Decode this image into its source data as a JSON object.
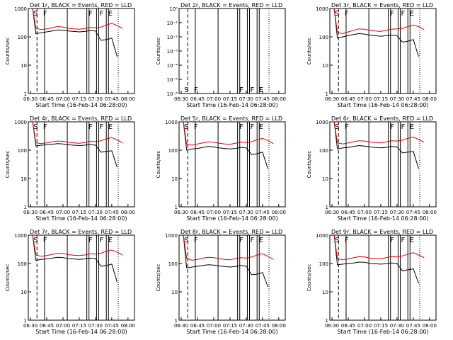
{
  "chart_data": [
    {
      "title": "Det 1r, BLACK = Events, RED = LLD",
      "x_ticks": [
        "06:30",
        "06:45",
        "07:00",
        "07:15",
        "07:30",
        "07:45",
        "08:00"
      ],
      "y_ticks": [
        "1",
        "10",
        "100",
        "1000"
      ],
      "ylabel": "Counts/sec",
      "xlabel": "Start Time (16-Feb-14 06:28:00)",
      "flags": [
        "S",
        "F",
        "F",
        "F",
        "E"
      ],
      "type": "line",
      "yscale": "log",
      "ylim": [
        1,
        1000
      ],
      "series": [
        {
          "name": "Events",
          "color": "#000000",
          "x": [
            "06:32",
            "06:35",
            "06:40",
            "06:45",
            "06:50",
            "06:55",
            "07:00",
            "07:05",
            "07:10",
            "07:15",
            "07:20",
            "07:25",
            "07:30",
            "07:35",
            "07:40",
            "07:45",
            "07:50",
            "07:55"
          ],
          "y": [
            1000,
            130,
            140,
            150,
            160,
            175,
            170,
            160,
            155,
            150,
            155,
            165,
            160,
            75,
            80,
            90,
            20,
            null
          ]
        },
        {
          "name": "LLD",
          "color": "#e00000",
          "x": [
            "06:32",
            "06:35",
            "06:40",
            "06:45",
            "06:50",
            "06:55",
            "07:00",
            "07:05",
            "07:10",
            "07:15",
            "07:20",
            "07:25",
            "07:30",
            "07:35",
            "07:40",
            "07:45",
            "07:50",
            "07:55"
          ],
          "y": [
            1000,
            200,
            180,
            190,
            210,
            230,
            220,
            200,
            190,
            185,
            195,
            215,
            210,
            220,
            260,
            300,
            250,
            200
          ]
        }
      ]
    },
    {
      "title": "Det 2r, BLACK = Events, RED = LLD",
      "x_ticks": [
        "06:30",
        "06:45",
        "07:00",
        "07:15",
        "07:30",
        "07:45",
        "08:00"
      ],
      "y_ticks": [
        "10⁻⁶",
        "10⁻⁵",
        "10⁻⁴",
        "10⁻³",
        "10⁻²",
        "10⁻¹",
        "10⁰"
      ],
      "ylabel": "Counts/sec",
      "xlabel": "Start Time (16-Feb-14 06:28:00)",
      "flags": [
        "S",
        "F",
        "F",
        "F",
        "E"
      ],
      "type": "line",
      "yscale": "log",
      "ylim": [
        1e-06,
        1
      ],
      "series": []
    },
    {
      "title": "Det 3r, BLACK = Events, RED = LLD",
      "x_ticks": [
        "06:30",
        "06:45",
        "07:00",
        "07:15",
        "07:30",
        "07:45",
        "08:00"
      ],
      "y_ticks": [
        "1",
        "10",
        "100",
        "1000"
      ],
      "ylabel": "Counts/sec",
      "xlabel": "Start Time (16-Feb-14 06:28:00)",
      "flags": [
        "S",
        "F",
        "F",
        "F",
        "E"
      ],
      "type": "line",
      "yscale": "log",
      "ylim": [
        1,
        1000
      ],
      "series": [
        {
          "name": "Events",
          "color": "#000000",
          "x": [
            "06:32",
            "06:35",
            "06:40",
            "06:45",
            "06:50",
            "06:55",
            "07:00",
            "07:05",
            "07:10",
            "07:15",
            "07:20",
            "07:25",
            "07:30",
            "07:35",
            "07:40",
            "07:45",
            "07:50",
            "07:55"
          ],
          "y": [
            1000,
            90,
            100,
            110,
            120,
            130,
            125,
            115,
            110,
            105,
            110,
            115,
            110,
            65,
            70,
            80,
            20,
            null
          ]
        },
        {
          "name": "LLD",
          "color": "#e00000",
          "x": [
            "06:32",
            "06:35",
            "06:40",
            "06:45",
            "06:50",
            "06:55",
            "07:00",
            "07:05",
            "07:10",
            "07:15",
            "07:20",
            "07:25",
            "07:30",
            "07:35",
            "07:40",
            "07:45",
            "07:50",
            "07:55"
          ],
          "y": [
            1000,
            140,
            130,
            150,
            170,
            190,
            185,
            170,
            160,
            155,
            170,
            185,
            190,
            200,
            230,
            260,
            230,
            180
          ]
        }
      ]
    },
    {
      "title": "Det 4r, BLACK = Events, RED = LLD",
      "x_ticks": [
        "06:30",
        "06:45",
        "07:00",
        "07:15",
        "07:30",
        "07:45",
        "08:00"
      ],
      "y_ticks": [
        "1",
        "10",
        "100",
        "1000"
      ],
      "ylabel": "Counts/sec",
      "xlabel": "Start Time (16-Feb-14 06:28:00)",
      "flags": [
        "S",
        "F",
        "F",
        "F",
        "E"
      ],
      "type": "line",
      "yscale": "log",
      "ylim": [
        1,
        1000
      ],
      "series": [
        {
          "name": "Events",
          "color": "#000000",
          "x": [
            "06:32",
            "06:35",
            "06:40",
            "06:45",
            "06:50",
            "06:55",
            "07:00",
            "07:05",
            "07:10",
            "07:15",
            "07:20",
            "07:25",
            "07:30",
            "07:35",
            "07:40",
            "07:45",
            "07:50",
            "07:55"
          ],
          "y": [
            1000,
            140,
            150,
            155,
            160,
            170,
            165,
            155,
            150,
            145,
            150,
            160,
            150,
            85,
            90,
            95,
            25,
            null
          ]
        },
        {
          "name": "LLD",
          "color": "#e00000",
          "x": [
            "06:32",
            "06:35",
            "06:40",
            "06:45",
            "06:50",
            "06:55",
            "07:00",
            "07:05",
            "07:10",
            "07:15",
            "07:20",
            "07:25",
            "07:30",
            "07:35",
            "07:40",
            "07:45",
            "07:50",
            "07:55"
          ],
          "y": [
            1000,
            180,
            170,
            180,
            195,
            210,
            205,
            190,
            180,
            175,
            185,
            205,
            200,
            215,
            250,
            280,
            230,
            180
          ]
        }
      ]
    },
    {
      "title": "Det 5r, BLACK = Events, RED = LLD",
      "x_ticks": [
        "06:30",
        "06:45",
        "07:00",
        "07:15",
        "07:30",
        "07:45",
        "08:00"
      ],
      "y_ticks": [
        "1",
        "10",
        "100",
        "1000"
      ],
      "ylabel": "Counts/sec",
      "xlabel": "Start Time (16-Feb-14 06:28:00)",
      "flags": [
        "S",
        "F",
        "F",
        "F",
        "E"
      ],
      "type": "line",
      "yscale": "log",
      "ylim": [
        1,
        1000
      ],
      "series": [
        {
          "name": "Events",
          "color": "#000000",
          "x": [
            "06:32",
            "06:35",
            "06:40",
            "06:45",
            "06:50",
            "06:55",
            "07:00",
            "07:05",
            "07:10",
            "07:15",
            "07:20",
            "07:25",
            "07:30",
            "07:35",
            "07:40",
            "07:45",
            "07:50",
            "07:55"
          ],
          "y": [
            1000,
            100,
            110,
            115,
            125,
            135,
            130,
            120,
            115,
            110,
            115,
            125,
            120,
            70,
            75,
            85,
            22,
            null
          ]
        },
        {
          "name": "LLD",
          "color": "#e00000",
          "x": [
            "06:32",
            "06:35",
            "06:40",
            "06:45",
            "06:50",
            "06:55",
            "07:00",
            "07:05",
            "07:10",
            "07:15",
            "07:20",
            "07:25",
            "07:30",
            "07:35",
            "07:40",
            "07:45",
            "07:50",
            "07:55"
          ],
          "y": [
            1000,
            160,
            150,
            165,
            180,
            195,
            190,
            175,
            165,
            160,
            175,
            190,
            185,
            200,
            235,
            260,
            220,
            170
          ]
        }
      ]
    },
    {
      "title": "Det 6r, BLACK = Events, RED = LLD",
      "x_ticks": [
        "06:30",
        "06:45",
        "07:00",
        "07:15",
        "07:30",
        "07:45",
        "08:00"
      ],
      "y_ticks": [
        "1",
        "10",
        "100",
        "1000"
      ],
      "ylabel": "Counts/sec",
      "xlabel": "Start Time (16-Feb-14 06:28:00)",
      "flags": [
        "S",
        "F",
        "F",
        "F",
        "E"
      ],
      "type": "line",
      "yscale": "log",
      "ylim": [
        1,
        1000
      ],
      "series": [
        {
          "name": "Events",
          "color": "#000000",
          "x": [
            "06:32",
            "06:35",
            "06:40",
            "06:45",
            "06:50",
            "06:55",
            "07:00",
            "07:05",
            "07:10",
            "07:15",
            "07:20",
            "07:25",
            "07:30",
            "07:35",
            "07:40",
            "07:45",
            "07:50",
            "07:55"
          ],
          "y": [
            1000,
            110,
            120,
            125,
            135,
            145,
            140,
            130,
            125,
            120,
            125,
            135,
            130,
            80,
            85,
            90,
            22,
            null
          ]
        },
        {
          "name": "LLD",
          "color": "#e00000",
          "x": [
            "06:32",
            "06:35",
            "06:40",
            "06:45",
            "06:50",
            "06:55",
            "07:00",
            "07:05",
            "07:10",
            "07:15",
            "07:20",
            "07:25",
            "07:30",
            "07:35",
            "07:40",
            "07:45",
            "07:50",
            "07:55"
          ],
          "y": [
            1000,
            180,
            165,
            180,
            200,
            215,
            210,
            195,
            185,
            180,
            195,
            215,
            210,
            225,
            260,
            290,
            240,
            190
          ]
        }
      ]
    },
    {
      "title": "Det 7r, BLACK = Events, RED = LLD",
      "x_ticks": [
        "06:30",
        "06:45",
        "07:00",
        "07:15",
        "07:30",
        "07:45",
        "08:00"
      ],
      "y_ticks": [
        "1",
        "10",
        "100",
        "1000"
      ],
      "ylabel": "Counts/sec",
      "xlabel": "Start Time (16-Feb-14 06:28:00)",
      "flags": [
        "S",
        "F",
        "F",
        "F",
        "E"
      ],
      "type": "line",
      "yscale": "log",
      "ylim": [
        1,
        1000
      ],
      "series": [
        {
          "name": "Events",
          "color": "#000000",
          "x": [
            "06:32",
            "06:35",
            "06:40",
            "06:45",
            "06:50",
            "06:55",
            "07:00",
            "07:05",
            "07:10",
            "07:15",
            "07:20",
            "07:25",
            "07:30",
            "07:35",
            "07:40",
            "07:45",
            "07:50",
            "07:55"
          ],
          "y": [
            1000,
            130,
            140,
            145,
            155,
            165,
            160,
            150,
            145,
            140,
            145,
            155,
            150,
            80,
            85,
            95,
            22,
            null
          ]
        },
        {
          "name": "LLD",
          "color": "#e00000",
          "x": [
            "06:32",
            "06:35",
            "06:40",
            "06:45",
            "06:50",
            "06:55",
            "07:00",
            "07:05",
            "07:10",
            "07:15",
            "07:20",
            "07:25",
            "07:30",
            "07:35",
            "07:40",
            "07:45",
            "07:50",
            "07:55"
          ],
          "y": [
            1000,
            200,
            180,
            190,
            210,
            230,
            225,
            205,
            195,
            190,
            200,
            220,
            215,
            230,
            270,
            300,
            250,
            200
          ]
        }
      ]
    },
    {
      "title": "Det 8r, BLACK = Events, RED = LLD",
      "x_ticks": [
        "06:30",
        "06:45",
        "07:00",
        "07:15",
        "07:30",
        "07:45",
        "08:00"
      ],
      "y_ticks": [
        "1",
        "10",
        "100",
        "1000"
      ],
      "ylabel": "Counts/sec",
      "xlabel": "Start Time (16-Feb-14 06:28:00)",
      "flags": [
        "S",
        "F",
        "F",
        "F",
        "E"
      ],
      "type": "line",
      "yscale": "log",
      "ylim": [
        1,
        1000
      ],
      "series": [
        {
          "name": "Events",
          "color": "#000000",
          "x": [
            "06:32",
            "06:35",
            "06:40",
            "06:45",
            "06:50",
            "06:55",
            "07:00",
            "07:05",
            "07:10",
            "07:15",
            "07:20",
            "07:25",
            "07:30",
            "07:35",
            "07:40",
            "07:45",
            "07:50",
            "07:55"
          ],
          "y": [
            1000,
            70,
            75,
            80,
            85,
            90,
            88,
            82,
            78,
            75,
            78,
            85,
            80,
            40,
            42,
            48,
            15,
            null
          ]
        },
        {
          "name": "LLD",
          "color": "#e00000",
          "x": [
            "06:32",
            "06:35",
            "06:40",
            "06:45",
            "06:50",
            "06:55",
            "07:00",
            "07:05",
            "07:10",
            "07:15",
            "07:20",
            "07:25",
            "07:30",
            "07:35",
            "07:40",
            "07:45",
            "07:50",
            "07:55"
          ],
          "y": [
            1000,
            150,
            130,
            140,
            155,
            165,
            160,
            150,
            140,
            135,
            150,
            160,
            155,
            170,
            200,
            220,
            180,
            140
          ]
        }
      ]
    },
    {
      "title": "Det 9r, BLACK = Events, RED = LLD",
      "x_ticks": [
        "06:30",
        "06:45",
        "07:00",
        "07:15",
        "07:30",
        "07:45",
        "08:00"
      ],
      "y_ticks": [
        "1",
        "10",
        "100",
        "1000"
      ],
      "ylabel": "Counts/sec",
      "xlabel": "Start Time (16-Feb-14 06:28:00)",
      "flags": [
        "S",
        "F",
        "F",
        "F",
        "E"
      ],
      "type": "line",
      "yscale": "log",
      "ylim": [
        1,
        1000
      ],
      "series": [
        {
          "name": "Events",
          "color": "#000000",
          "x": [
            "06:32",
            "06:35",
            "06:40",
            "06:45",
            "06:50",
            "06:55",
            "07:00",
            "07:05",
            "07:10",
            "07:15",
            "07:20",
            "07:25",
            "07:30",
            "07:35",
            "07:40",
            "07:45",
            "07:50",
            "07:55"
          ],
          "y": [
            1000,
            90,
            95,
            100,
            105,
            112,
            110,
            100,
            98,
            95,
            98,
            105,
            100,
            55,
            60,
            65,
            20,
            null
          ]
        },
        {
          "name": "LLD",
          "color": "#e00000",
          "x": [
            "06:32",
            "06:35",
            "06:40",
            "06:45",
            "06:50",
            "06:55",
            "07:00",
            "07:05",
            "07:10",
            "07:15",
            "07:20",
            "07:25",
            "07:30",
            "07:35",
            "07:40",
            "07:45",
            "07:50",
            "07:55"
          ],
          "y": [
            1000,
            150,
            135,
            145,
            160,
            175,
            170,
            155,
            150,
            145,
            160,
            175,
            170,
            185,
            215,
            240,
            200,
            160
          ]
        }
      ]
    }
  ],
  "x_range": [
    "06:28",
    "08:06"
  ],
  "flag_times": [
    "06:32",
    "06:41",
    "07:23",
    "07:33",
    "07:41"
  ],
  "dashed_time": "06:36",
  "solid_vlines": [
    "06:43",
    "07:04",
    "07:22",
    "07:24",
    "07:31",
    "07:33",
    "07:40",
    "07:42"
  ],
  "dotted_vline": "07:51"
}
